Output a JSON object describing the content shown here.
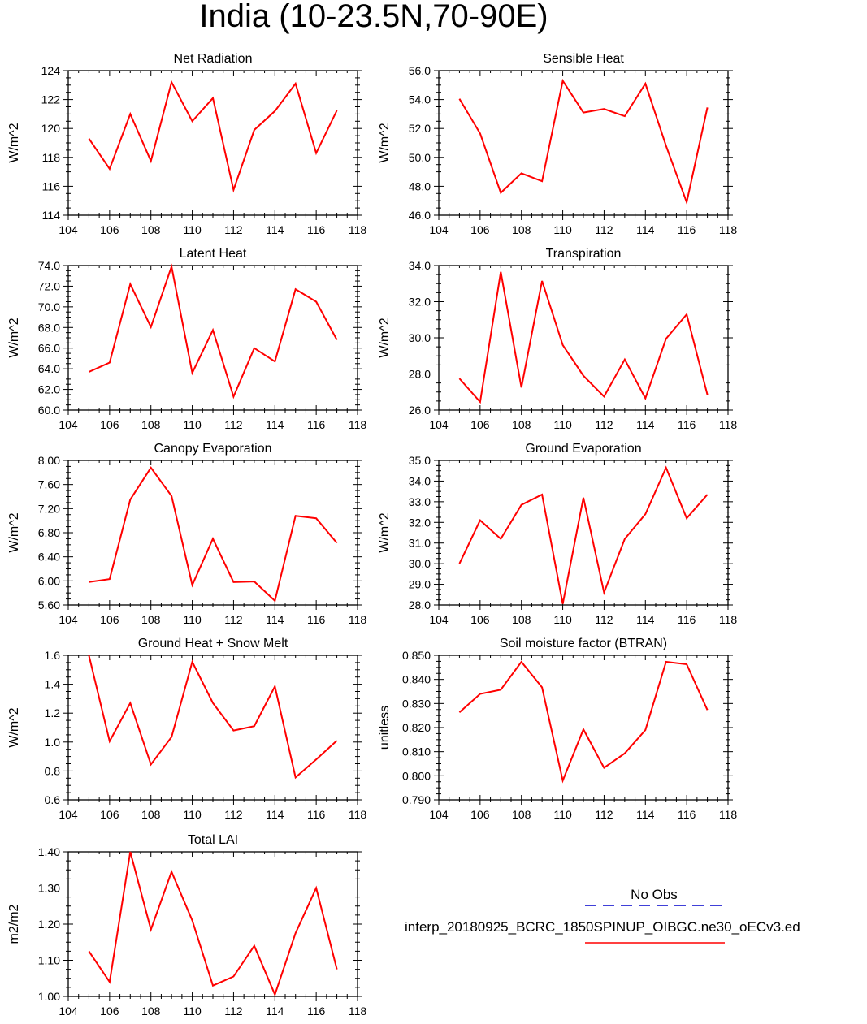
{
  "title": "India (10-23.5N,70-90E)",
  "legend": {
    "obs_label": "No Obs",
    "obs_color": "#0000cc",
    "model_label": "interp_20180925_BCRC_1850SPINUP_OIBGC.ne30_oECv3.ed",
    "model_color": "#ff0000"
  },
  "chart_data": [
    {
      "type": "line",
      "title": "Net Radiation",
      "ylabel": "W/m^2",
      "x": [
        105,
        106,
        107,
        108,
        109,
        110,
        111,
        112,
        113,
        114,
        115,
        116,
        117
      ],
      "xlim": [
        104,
        118
      ],
      "xticks": [
        "104",
        "106",
        "108",
        "110",
        "112",
        "114",
        "116",
        "118"
      ],
      "ylim": [
        114,
        124
      ],
      "yticks": [
        "114",
        "116",
        "118",
        "120",
        "122",
        "124"
      ],
      "series": [
        {
          "values": [
            119.3,
            117.2,
            121.0,
            117.75,
            123.2,
            120.5,
            122.1,
            115.75,
            119.9,
            121.2,
            123.1,
            118.3,
            121.25
          ]
        }
      ]
    },
    {
      "type": "line",
      "title": "Sensible Heat",
      "ylabel": "W/m^2",
      "x": [
        105,
        106,
        107,
        108,
        109,
        110,
        111,
        112,
        113,
        114,
        115,
        116,
        117
      ],
      "xlim": [
        104,
        118
      ],
      "xticks": [
        "104",
        "106",
        "108",
        "110",
        "112",
        "114",
        "116",
        "118"
      ],
      "ylim": [
        46,
        56
      ],
      "yticks": [
        "46.0",
        "48.0",
        "50.0",
        "52.0",
        "54.0",
        "56.0"
      ],
      "series": [
        {
          "values": [
            54.05,
            51.65,
            47.55,
            48.9,
            48.35,
            55.3,
            53.1,
            53.35,
            52.85,
            55.1,
            50.8,
            46.9,
            53.45
          ]
        }
      ]
    },
    {
      "type": "line",
      "title": "Latent Heat",
      "ylabel": "W/m^2",
      "x": [
        105,
        106,
        107,
        108,
        109,
        110,
        111,
        112,
        113,
        114,
        115,
        116,
        117
      ],
      "xlim": [
        104,
        118
      ],
      "xticks": [
        "104",
        "106",
        "108",
        "110",
        "112",
        "114",
        "116",
        "118"
      ],
      "ylim": [
        60,
        74
      ],
      "yticks": [
        "60.0",
        "62.0",
        "64.0",
        "66.0",
        "68.0",
        "70.0",
        "72.0",
        "74.0"
      ],
      "series": [
        {
          "values": [
            63.7,
            64.6,
            72.2,
            68.05,
            73.9,
            63.6,
            67.75,
            61.3,
            66.0,
            64.7,
            71.7,
            70.5,
            66.8
          ]
        }
      ]
    },
    {
      "type": "line",
      "title": "Transpiration",
      "ylabel": "W/m^2",
      "x": [
        105,
        106,
        107,
        108,
        109,
        110,
        111,
        112,
        113,
        114,
        115,
        116,
        117
      ],
      "xlim": [
        104,
        118
      ],
      "xticks": [
        "104",
        "106",
        "108",
        "110",
        "112",
        "114",
        "116",
        "118"
      ],
      "ylim": [
        26,
        34
      ],
      "yticks": [
        "26.0",
        "28.0",
        "30.0",
        "32.0",
        "34.0"
      ],
      "series": [
        {
          "values": [
            27.75,
            26.45,
            33.65,
            27.25,
            33.15,
            29.6,
            27.9,
            26.75,
            28.8,
            26.65,
            29.95,
            31.3,
            26.85
          ]
        }
      ]
    },
    {
      "type": "line",
      "title": "Canopy Evaporation",
      "ylabel": "W/m^2",
      "x": [
        105,
        106,
        107,
        108,
        109,
        110,
        111,
        112,
        113,
        114,
        115,
        116,
        117
      ],
      "xlim": [
        104,
        118
      ],
      "xticks": [
        "104",
        "106",
        "108",
        "110",
        "112",
        "114",
        "116",
        "118"
      ],
      "ylim": [
        5.6,
        8.0
      ],
      "yticks": [
        "5.60",
        "6.00",
        "6.40",
        "6.80",
        "7.20",
        "7.60",
        "8.00"
      ],
      "series": [
        {
          "values": [
            5.98,
            6.03,
            7.35,
            7.88,
            7.41,
            5.93,
            6.7,
            5.98,
            5.99,
            5.67,
            7.08,
            7.04,
            6.63
          ]
        }
      ]
    },
    {
      "type": "line",
      "title": "Ground Evaporation",
      "ylabel": "W/m^2",
      "x": [
        105,
        106,
        107,
        108,
        109,
        110,
        111,
        112,
        113,
        114,
        115,
        116,
        117
      ],
      "xlim": [
        104,
        118
      ],
      "xticks": [
        "104",
        "106",
        "108",
        "110",
        "112",
        "114",
        "116",
        "118"
      ],
      "ylim": [
        28,
        35
      ],
      "yticks": [
        "28.0",
        "29.0",
        "30.0",
        "31.0",
        "32.0",
        "33.0",
        "34.0",
        "35.0"
      ],
      "series": [
        {
          "values": [
            30.0,
            32.1,
            31.2,
            32.85,
            33.35,
            28.05,
            33.2,
            28.6,
            31.2,
            32.4,
            34.65,
            32.2,
            33.35
          ]
        }
      ]
    },
    {
      "type": "line",
      "title": "Ground Heat + Snow Melt",
      "ylabel": "W/m^2",
      "x": [
        105,
        106,
        107,
        108,
        109,
        110,
        111,
        112,
        113,
        114,
        115,
        116,
        117
      ],
      "xlim": [
        104,
        118
      ],
      "xticks": [
        "104",
        "106",
        "108",
        "110",
        "112",
        "114",
        "116",
        "118"
      ],
      "ylim": [
        0.6,
        1.6
      ],
      "yticks": [
        "0.6",
        "0.8",
        "1.0",
        "1.2",
        "1.4",
        "1.6"
      ],
      "series": [
        {
          "values": [
            1.6,
            1.005,
            1.27,
            0.845,
            1.035,
            1.555,
            1.27,
            1.08,
            1.11,
            1.385,
            0.755,
            0.88,
            1.01
          ]
        }
      ]
    },
    {
      "type": "line",
      "title": "Soil moisture factor (BTRAN)",
      "ylabel": "unitless",
      "x": [
        105,
        106,
        107,
        108,
        109,
        110,
        111,
        112,
        113,
        114,
        115,
        116,
        117
      ],
      "xlim": [
        104,
        118
      ],
      "xticks": [
        "104",
        "106",
        "108",
        "110",
        "112",
        "114",
        "116",
        "118"
      ],
      "ylim": [
        0.79,
        0.85
      ],
      "yticks": [
        "0.790",
        "0.800",
        "0.810",
        "0.820",
        "0.830",
        "0.840",
        "0.850"
      ],
      "series": [
        {
          "values": [
            0.8263,
            0.834,
            0.8357,
            0.8473,
            0.8367,
            0.798,
            0.8193,
            0.8033,
            0.8093,
            0.819,
            0.8473,
            0.8463,
            0.8273
          ]
        }
      ]
    },
    {
      "type": "line",
      "title": "Total LAI",
      "ylabel": "m2/m2",
      "x": [
        105,
        106,
        107,
        108,
        109,
        110,
        111,
        112,
        113,
        114,
        115,
        116,
        117
      ],
      "xlim": [
        104,
        118
      ],
      "xticks": [
        "104",
        "106",
        "108",
        "110",
        "112",
        "114",
        "116",
        "118"
      ],
      "ylim": [
        1.0,
        1.4
      ],
      "yticks": [
        "1.00",
        "1.10",
        "1.20",
        "1.30",
        "1.40"
      ],
      "series": [
        {
          "values": [
            1.125,
            1.04,
            1.4,
            1.185,
            1.345,
            1.21,
            1.03,
            1.055,
            1.14,
            1.005,
            1.175,
            1.3,
            1.075
          ]
        }
      ]
    }
  ]
}
